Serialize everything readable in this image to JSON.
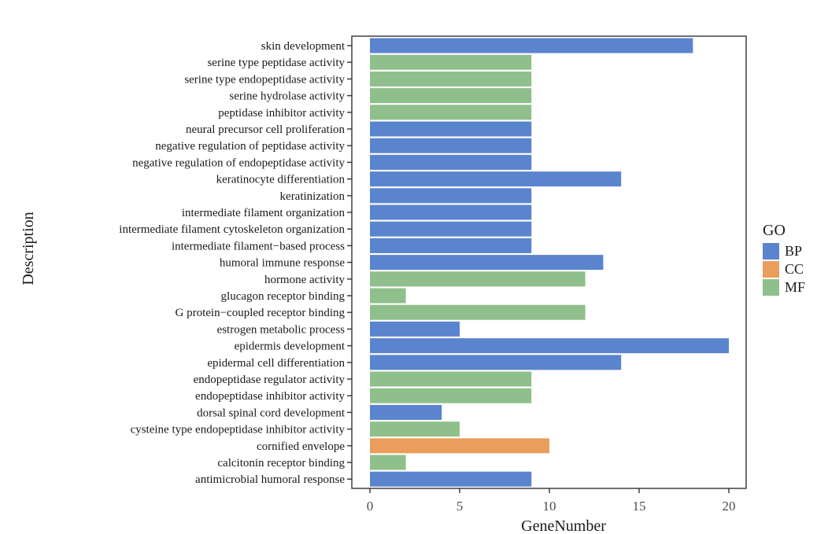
{
  "chart_data": {
    "type": "bar",
    "orientation": "horizontal",
    "xlabel": "GeneNumber",
    "ylabel": "Description",
    "xlim": [
      0,
      20
    ],
    "x_ticks": [
      0,
      5,
      10,
      15,
      20
    ],
    "legend": {
      "title": "GO",
      "position": "right",
      "entries": [
        {
          "label": "BP",
          "color": "#5b84cf"
        },
        {
          "label": "CC",
          "color": "#ea9e5c"
        },
        {
          "label": "MF",
          "color": "#8fbf8b"
        }
      ]
    },
    "categories": [
      {
        "label": "skin development",
        "value": 18,
        "group": "BP"
      },
      {
        "label": "serine type peptidase activity",
        "value": 9,
        "group": "MF"
      },
      {
        "label": "serine type endopeptidase activity",
        "value": 9,
        "group": "MF"
      },
      {
        "label": "serine hydrolase activity",
        "value": 9,
        "group": "MF"
      },
      {
        "label": "peptidase inhibitor activity",
        "value": 9,
        "group": "MF"
      },
      {
        "label": "neural precursor cell proliferation",
        "value": 9,
        "group": "BP"
      },
      {
        "label": "negative regulation of peptidase activity",
        "value": 9,
        "group": "BP"
      },
      {
        "label": "negative regulation of endopeptidase activity",
        "value": 9,
        "group": "BP"
      },
      {
        "label": "keratinocyte differentiation",
        "value": 14,
        "group": "BP"
      },
      {
        "label": "keratinization",
        "value": 9,
        "group": "BP"
      },
      {
        "label": "intermediate filament organization",
        "value": 9,
        "group": "BP"
      },
      {
        "label": "intermediate filament cytoskeleton organization",
        "value": 9,
        "group": "BP"
      },
      {
        "label": "intermediate filament−based process",
        "value": 9,
        "group": "BP"
      },
      {
        "label": "humoral immune response",
        "value": 13,
        "group": "BP"
      },
      {
        "label": "hormone activity",
        "value": 12,
        "group": "MF"
      },
      {
        "label": "glucagon receptor binding",
        "value": 2,
        "group": "MF"
      },
      {
        "label": "G protein−coupled receptor binding",
        "value": 12,
        "group": "MF"
      },
      {
        "label": "estrogen metabolic process",
        "value": 5,
        "group": "BP"
      },
      {
        "label": "epidermis development",
        "value": 20,
        "group": "BP"
      },
      {
        "label": "epidermal cell differentiation",
        "value": 14,
        "group": "BP"
      },
      {
        "label": "endopeptidase regulator activity",
        "value": 9,
        "group": "MF"
      },
      {
        "label": "endopeptidase inhibitor activity",
        "value": 9,
        "group": "MF"
      },
      {
        "label": "dorsal spinal cord development",
        "value": 4,
        "group": "BP"
      },
      {
        "label": "cysteine type endopeptidase inhibitor activity",
        "value": 5,
        "group": "MF"
      },
      {
        "label": "cornified envelope",
        "value": 10,
        "group": "CC"
      },
      {
        "label": "calcitonin receptor binding",
        "value": 2,
        "group": "MF"
      },
      {
        "label": "antimicrobial humoral response",
        "value": 9,
        "group": "BP"
      }
    ]
  }
}
